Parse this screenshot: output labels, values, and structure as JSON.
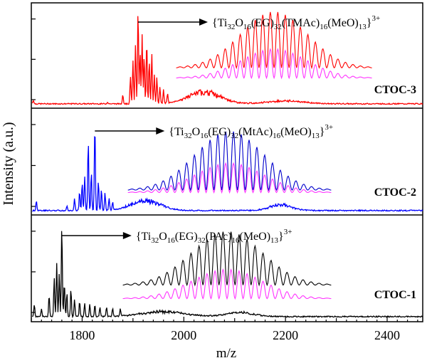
{
  "chart_data": {
    "type": "line",
    "xlabel": "m/z",
    "ylabel": "Intensity (a.u.)",
    "xlim": [
      1700,
      2470
    ],
    "x_ticks": [
      1800,
      2000,
      2200,
      2400
    ],
    "grid": false,
    "panels": [
      {
        "label": "CTOC-3",
        "color": "#ff0000",
        "ylim": [
          0,
          1
        ],
        "formula": {
          "a": "{Ti",
          "b": "32",
          "c": "O",
          "d": "16",
          "e": "(EG)",
          "f": "32",
          "g": "(TMAc)",
          "h": "16",
          "i": "(MeO)",
          "j": "13",
          "k": "}",
          "l": "3+"
        },
        "peak_x": 1910,
        "peaks": [
          [
            1704,
            0.04
          ],
          [
            1850,
            0.02
          ],
          [
            1880,
            0.1
          ],
          [
            1895,
            0.28
          ],
          [
            1900,
            0.45
          ],
          [
            1905,
            0.62
          ],
          [
            1910,
            0.98
          ],
          [
            1914,
            0.55
          ],
          [
            1918,
            0.72
          ],
          [
            1922,
            0.5
          ],
          [
            1927,
            0.66
          ],
          [
            1932,
            0.45
          ],
          [
            1937,
            0.52
          ],
          [
            1942,
            0.3
          ],
          [
            1947,
            0.28
          ],
          [
            1953,
            0.18
          ],
          [
            1960,
            0.14
          ],
          [
            1968,
            0.1
          ]
        ],
        "humps": [
          {
            "c": 2040,
            "w": 45,
            "h": 0.12
          },
          {
            "c": 2200,
            "w": 50,
            "h": 0.03
          }
        ],
        "sim": {
          "x": [
            1985,
            2370
          ],
          "n": 26,
          "h_top": 0.58,
          "h_bottom": 0.3,
          "top_color": "#ff0000",
          "bottom_color": "#ff33ff"
        }
      },
      {
        "label": "CTOC-2",
        "color": "#0000ff",
        "ylim": [
          0,
          1
        ],
        "formula": {
          "a": "{Ti",
          "b": "32",
          "c": "O",
          "d": "16",
          "e": "(EG)",
          "f": "32",
          "g": "(MtAc)",
          "h": "16",
          "i": "(MeO)",
          "j": "13",
          "k": "}",
          "l": "3+"
        },
        "peak_x": 1825,
        "peaks": [
          [
            1710,
            0.1
          ],
          [
            1770,
            0.05
          ],
          [
            1785,
            0.12
          ],
          [
            1795,
            0.2
          ],
          [
            1800,
            0.28
          ],
          [
            1805,
            0.35
          ],
          [
            1812,
            0.72
          ],
          [
            1818,
            0.4
          ],
          [
            1825,
            0.9
          ],
          [
            1832,
            0.3
          ],
          [
            1838,
            0.22
          ],
          [
            1845,
            0.18
          ],
          [
            1853,
            0.12
          ],
          [
            1860,
            0.08
          ]
        ],
        "humps": [
          {
            "c": 1925,
            "w": 40,
            "h": 0.1
          },
          {
            "c": 2190,
            "w": 30,
            "h": 0.06
          }
        ],
        "sim": {
          "x": [
            1890,
            2290
          ],
          "n": 26,
          "h_top": 0.6,
          "h_bottom": 0.3,
          "top_color": "#0000cc",
          "bottom_color": "#ff33ff"
        }
      },
      {
        "label": "CTOC-1",
        "color": "#000000",
        "ylim": [
          0,
          1
        ],
        "formula": {
          "a": "{Ti",
          "b": "32",
          "c": "O",
          "d": "16",
          "e": "(EG)",
          "f": "32",
          "g": "(PAc)",
          "h": "16",
          "i": "(MeO)",
          "j": "13",
          "k": "}",
          "l": "3+"
        },
        "peak_x": 1760,
        "peaks": [
          [
            1706,
            0.12
          ],
          [
            1720,
            0.08
          ],
          [
            1735,
            0.22
          ],
          [
            1745,
            0.4
          ],
          [
            1750,
            0.55
          ],
          [
            1755,
            0.45
          ],
          [
            1760,
            0.95
          ],
          [
            1765,
            0.35
          ],
          [
            1770,
            0.25
          ],
          [
            1778,
            0.28
          ],
          [
            1785,
            0.18
          ],
          [
            1795,
            0.16
          ],
          [
            1805,
            0.14
          ],
          [
            1815,
            0.13
          ],
          [
            1825,
            0.12
          ],
          [
            1835,
            0.1
          ],
          [
            1848,
            0.1
          ],
          [
            1860,
            0.08
          ],
          [
            1875,
            0.07
          ]
        ],
        "humps": [
          {
            "c": 1960,
            "w": 60,
            "h": 0.05
          },
          {
            "c": 2110,
            "w": 40,
            "h": 0.04
          }
        ],
        "sim": {
          "x": [
            1880,
            2290
          ],
          "n": 26,
          "h_top": 0.55,
          "h_bottom": 0.3,
          "top_color": "#000000",
          "bottom_color": "#ff33ff"
        }
      }
    ]
  }
}
